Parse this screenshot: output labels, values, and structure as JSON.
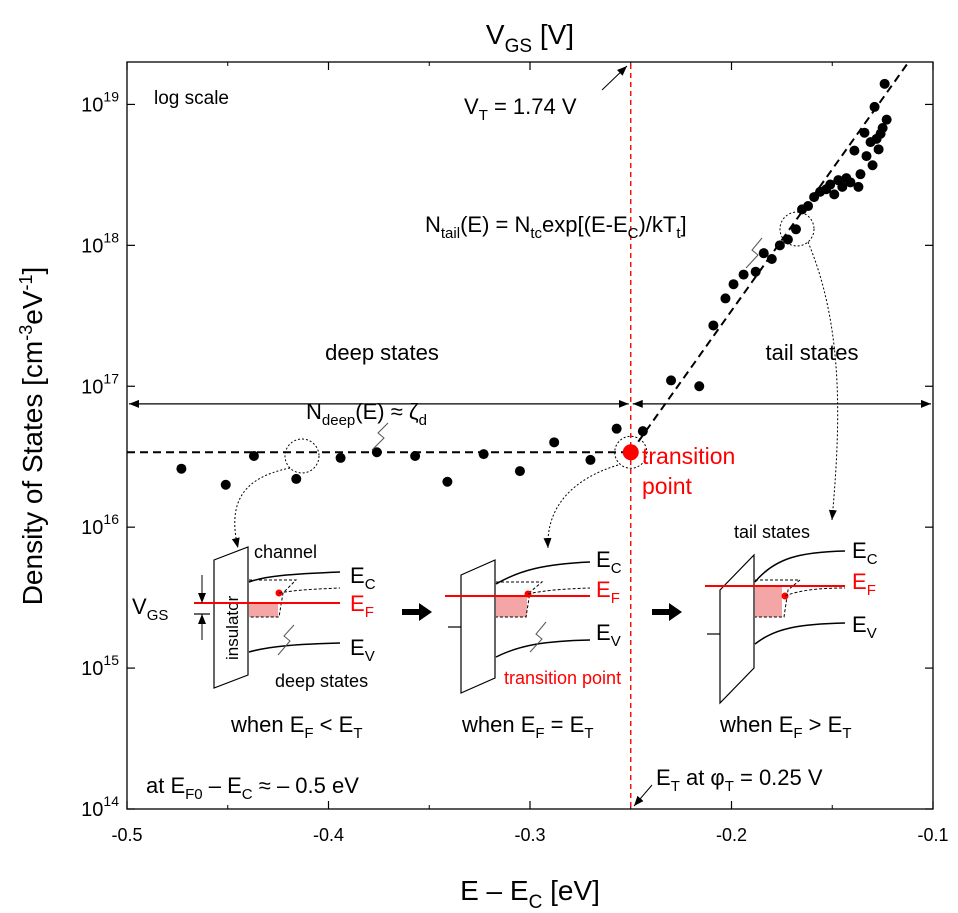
{
  "chart_data": {
    "type": "scatter",
    "title": "",
    "xlabel": {
      "main": "E – E",
      "sub": "C",
      "unit": " [eV]"
    },
    "ylabel": {
      "main": "Density of States [cm",
      "sup1": "-3",
      "mid": "eV",
      "sup2": "-1",
      "end": "]"
    },
    "top_axis_label": {
      "main": "V",
      "sub": "GS",
      "unit": " [V]"
    },
    "xlim": [
      -0.5,
      -0.1
    ],
    "ylim": [
      100000000000000.0,
      2e+19
    ],
    "y_scale": "log",
    "x_ticks": [
      -0.5,
      -0.4,
      -0.3,
      -0.2,
      -0.1
    ],
    "x_tick_labels": [
      "-0.5",
      "-0.4",
      "-0.3",
      "-0.2",
      "-0.1"
    ],
    "y_ticks": [
      {
        "value": 100000000000000.0,
        "base": "10",
        "exp": "14"
      },
      {
        "value": 1000000000000000.0,
        "base": "10",
        "exp": "15"
      },
      {
        "value": 1e+16,
        "base": "10",
        "exp": "16"
      },
      {
        "value": 1e+17,
        "base": "10",
        "exp": "17"
      },
      {
        "value": 1e+18,
        "base": "10",
        "exp": "18"
      },
      {
        "value": 1e+19,
        "base": "10",
        "exp": "19"
      }
    ],
    "grid": false,
    "series": [
      {
        "x": [
          -0.473,
          -0.451,
          -0.437,
          -0.416,
          -0.394,
          -0.376,
          -0.357,
          -0.341,
          -0.323,
          -0.305,
          -0.288,
          -0.27,
          -0.257,
          -0.244,
          -0.23,
          -0.216,
          -0.209,
          -0.203,
          -0.199,
          -0.194,
          -0.188,
          -0.184,
          -0.18,
          -0.176,
          -0.172,
          -0.168,
          -0.165,
          -0.162,
          -0.159,
          -0.156,
          -0.153,
          -0.151,
          -0.149,
          -0.147,
          -0.145,
          -0.143,
          -0.141,
          -0.139,
          -0.137,
          -0.136,
          -0.134,
          -0.133,
          -0.131,
          -0.13,
          -0.129,
          -0.128,
          -0.127,
          -0.126,
          -0.125,
          -0.124,
          -0.123
        ],
        "y": [
          2.6e+16,
          2e+16,
          3.2e+16,
          2.2e+16,
          3.1e+16,
          3.4e+16,
          3.2e+16,
          2.1e+16,
          3.3e+16,
          2.5e+16,
          4e+16,
          3e+16,
          5e+16,
          4.8e+16,
          1.1e+17,
          1e+17,
          2.7e+17,
          4.2e+17,
          5.3e+17,
          6.2e+17,
          6.5e+17,
          8.8e+17,
          8e+17,
          1e+18,
          1.1e+18,
          1.3e+18,
          1.8e+18,
          1.9e+18,
          2.2e+18,
          2.4e+18,
          2.5e+18,
          2.7e+18,
          2.3e+18,
          2.9e+18,
          2.6e+18,
          3e+18,
          2.8e+18,
          4.7e+18,
          2.6e+18,
          3.2e+18,
          6.3e+18,
          4.3e+18,
          5.4e+18,
          3.7e+18,
          9.6e+18,
          5.7e+18,
          4.8e+18,
          6.2e+18,
          6.8e+18,
          1.4e+19,
          7.8e+18
        ]
      }
    ],
    "fit_lines": [
      {
        "name": "deep",
        "x": [
          -0.5,
          -0.25
        ],
        "y": [
          3.4e+16,
          3.4e+16
        ],
        "style": "dashed"
      },
      {
        "name": "tail",
        "x": [
          -0.25,
          -0.1
        ],
        "y": [
          3.4e+16,
          3.5e+19
        ],
        "style": "dashed"
      }
    ],
    "transition_point": {
      "x": -0.25,
      "y": 3.4e+16
    },
    "vertical_line_x": -0.25,
    "range_arrow_y": 7.5e+16,
    "annotations": {
      "log_scale": "log scale",
      "vt": {
        "main": "V",
        "sub": "T",
        "rest": " = 1.74 V"
      },
      "ntail": {
        "n": "N",
        "sub1": "tail",
        "p1": "(E) = N",
        "sub2": "tc",
        "p2": "exp[(E-E",
        "sub3": "C",
        "p3": ")/kT",
        "sub4": "t",
        "p4": "]"
      },
      "deep_states": "deep states",
      "tail_states": "tail states",
      "ndeep": {
        "n": "N",
        "sub1": "deep",
        "p1": "(E) ≈ ζ",
        "sub2": "d"
      },
      "transition_line1": "transition",
      "transition_line2": "point",
      "efo": {
        "p1": "at E",
        "sub1": "F0",
        "p2": " – E",
        "sub2": "C",
        "p3": " ≈ – 0.5 eV"
      },
      "et": {
        "e": "E",
        "sub": "T",
        "mid": " at φ",
        "sub2": "T",
        "rest": " = 0.25 V"
      }
    },
    "insets": {
      "left": {
        "channel": "channel",
        "insulator": "insulator",
        "vgs": {
          "main": "V",
          "sub": "GS"
        },
        "ec": {
          "main": "E",
          "sub": "C"
        },
        "ef": {
          "main": "E",
          "sub": "F"
        },
        "ev": {
          "main": "E",
          "sub": "V"
        },
        "bottom": "deep states",
        "caption": {
          "p1": "when E",
          "s1": "F",
          "p2": " < E",
          "s2": "T"
        }
      },
      "middle": {
        "ec": {
          "main": "E",
          "sub": "C"
        },
        "ef": {
          "main": "E",
          "sub": "F"
        },
        "ev": {
          "main": "E",
          "sub": "V"
        },
        "bottom": "transition  point",
        "caption": {
          "p1": "when E",
          "s1": "F",
          "p2": " = E",
          "s2": "T"
        }
      },
      "right": {
        "top": "tail states",
        "ec": {
          "main": "E",
          "sub": "C"
        },
        "ef": {
          "main": "E",
          "sub": "F"
        },
        "ev": {
          "main": "E",
          "sub": "V"
        },
        "caption": {
          "p1": "when E",
          "s1": "F",
          "p2": " > E",
          "s2": "T"
        }
      }
    },
    "colors": {
      "accent": "#ff0000",
      "points": "#000000",
      "fill": "#f4a6a6",
      "axis": "#000000"
    }
  }
}
